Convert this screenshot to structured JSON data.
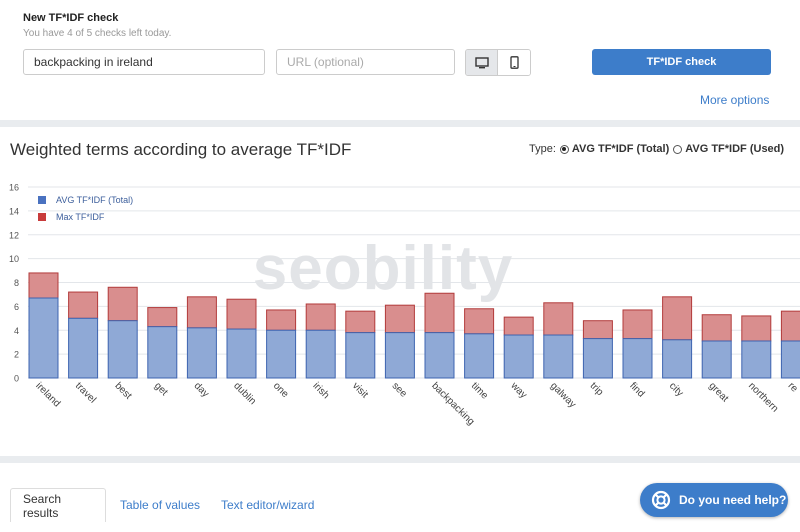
{
  "header": {
    "title": "New TF*IDF check",
    "subtitle": "You have 4 of 5 checks left today.",
    "keyword_value": "backpacking in ireland",
    "url_placeholder": "URL (optional)",
    "check_button": "TF*IDF check",
    "more_options": "More options",
    "devices": [
      "desktop-icon",
      "mobile-icon"
    ],
    "selected_device": "desktop"
  },
  "chart_section": {
    "title": "Weighted terms according to average TF*IDF",
    "type_label": "Type:",
    "options": [
      "AVG TF*IDF (Total)",
      "AVG TF*IDF (Used)"
    ],
    "selected_option": "AVG TF*IDF (Total)",
    "watermark": "seobility"
  },
  "chart_data": {
    "type": "bar",
    "stacked": true,
    "categories": [
      "ireland",
      "travel",
      "best",
      "get",
      "day",
      "dublin",
      "one",
      "irish",
      "visit",
      "see",
      "backpacking",
      "time",
      "way",
      "galway",
      "trip",
      "find",
      "city",
      "great",
      "northern",
      "re"
    ],
    "series": [
      {
        "name": "AVG TF*IDF (Total)",
        "color": "#8fa9d6",
        "values": [
          6.7,
          5.0,
          4.8,
          4.3,
          4.2,
          4.1,
          4.0,
          4.0,
          3.8,
          3.8,
          3.8,
          3.7,
          3.6,
          3.6,
          3.3,
          3.3,
          3.2,
          3.1,
          3.1,
          3.1
        ]
      },
      {
        "name": "Max TF*IDF",
        "color": "#d98e8e",
        "values": [
          8.8,
          7.2,
          7.6,
          5.9,
          6.8,
          6.6,
          5.7,
          6.2,
          5.6,
          6.1,
          7.1,
          5.8,
          5.1,
          6.3,
          4.8,
          5.7,
          6.8,
          5.3,
          5.2,
          5.6
        ]
      }
    ],
    "y_ticks": [
      0,
      2,
      4,
      6,
      8,
      10,
      12,
      14,
      16
    ],
    "ylim": [
      0,
      16
    ],
    "grid": true,
    "legend_position": "top-left"
  },
  "tabs": [
    "Search results",
    "Table of values",
    "Text editor/wizard"
  ],
  "active_tab": "Search results",
  "help": {
    "label": "Do you need help?"
  }
}
